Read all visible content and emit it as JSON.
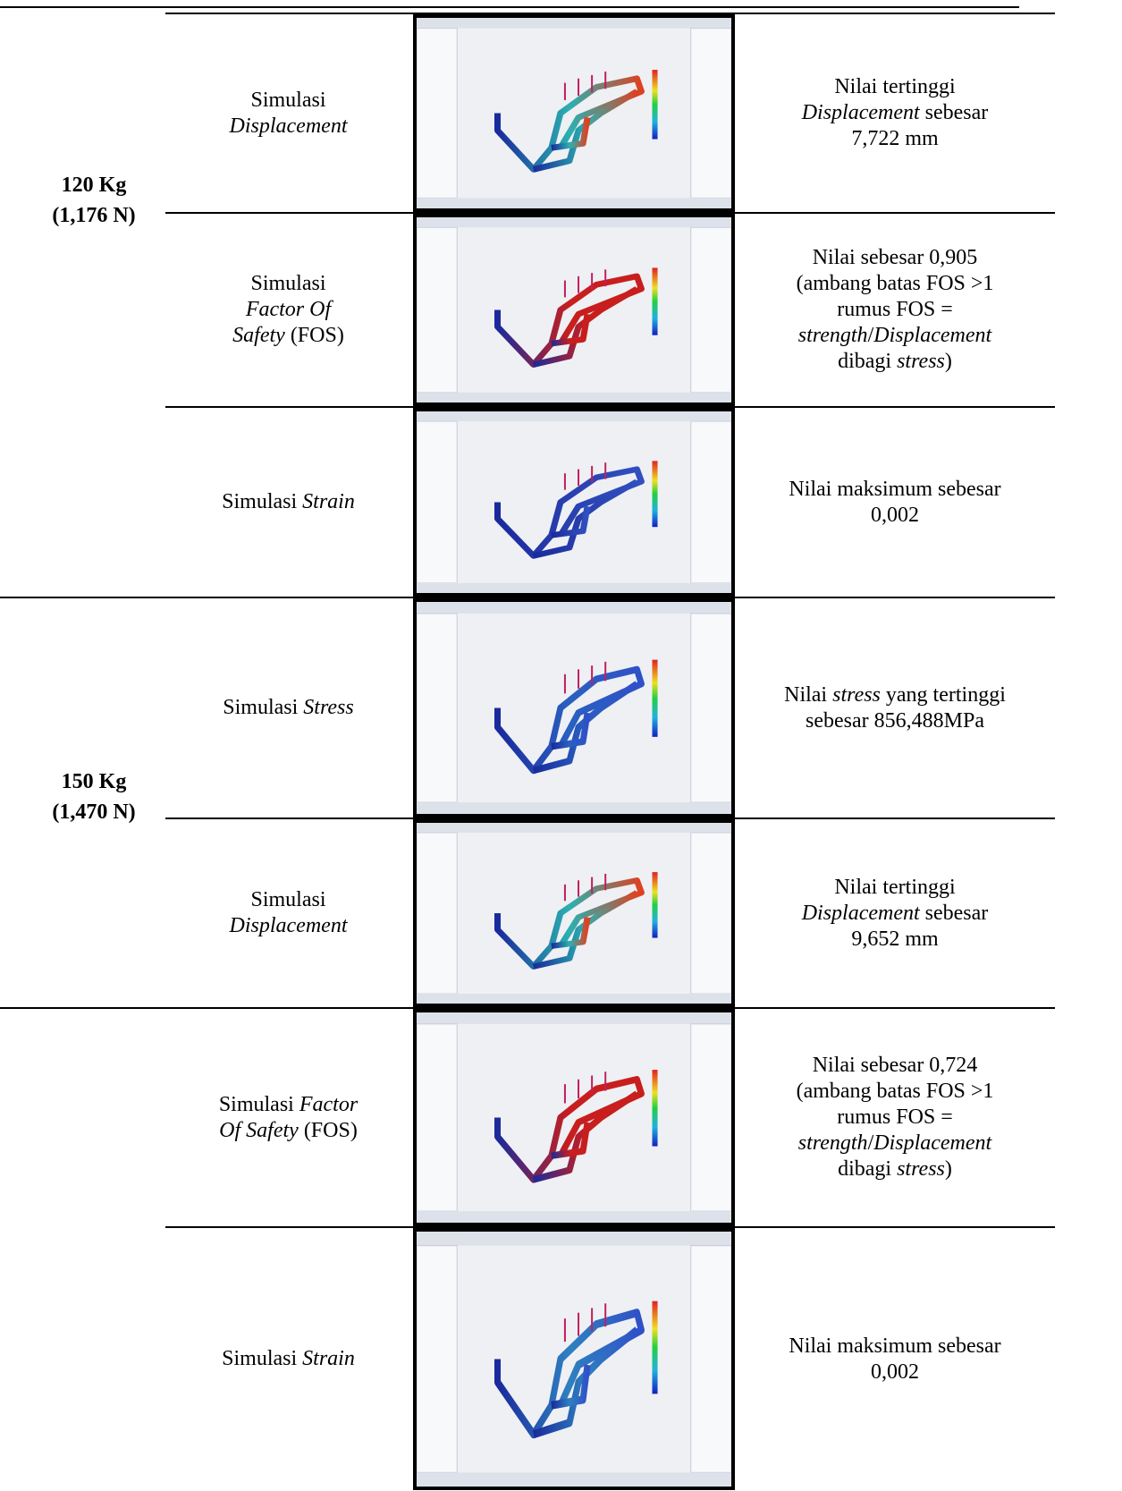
{
  "groups": [
    {
      "label": [
        "120 Kg",
        "(1,176 N)"
      ]
    },
    {
      "label": [
        "150 Kg",
        "(1,470 N)"
      ]
    }
  ],
  "rows": [
    {
      "label": [
        [
          "Simulasi"
        ],
        [
          {
            "em": "Displacement"
          }
        ]
      ],
      "result": [
        [
          "Nilai tertinggi"
        ],
        [
          {
            "em": "Displacement"
          },
          " sebesar"
        ],
        [
          "7,722 mm"
        ]
      ]
    },
    {
      "label": [
        [
          "Simulasi"
        ],
        [
          {
            "em": "Factor Of"
          }
        ],
        [
          {
            "em": "Safety"
          },
          " (FOS)"
        ]
      ],
      "result": [
        [
          "Nilai sebesar 0,905"
        ],
        [
          "(ambang batas FOS >1"
        ],
        [
          "rumus FOS ="
        ],
        [
          {
            "em": "strength"
          },
          "/",
          {
            "em": "Displacement"
          }
        ],
        [
          "dibagi ",
          {
            "em": "stress"
          },
          ")"
        ]
      ]
    },
    {
      "label": [
        [
          "Simulasi ",
          {
            "em": "Strain"
          }
        ]
      ],
      "result": [
        [
          "Nilai maksimum sebesar"
        ],
        [
          "0,002"
        ]
      ]
    },
    {
      "label": [
        [
          "Simulasi ",
          {
            "em": "Stress"
          }
        ]
      ],
      "result": [
        [
          "Nilai ",
          {
            "em": "stress"
          },
          " yang tertinggi"
        ],
        [
          "sebesar 856,488MPa"
        ]
      ]
    },
    {
      "label": [
        [
          "Simulasi"
        ],
        [
          {
            "em": "Displacement"
          }
        ]
      ],
      "result": [
        [
          "Nilai tertinggi"
        ],
        [
          {
            "em": "Displacement"
          },
          " sebesar"
        ],
        [
          "9,652 mm"
        ]
      ]
    },
    {
      "label": [
        [
          "Simulasi ",
          {
            "em": "Factor"
          }
        ],
        [
          {
            "em": "Of Safety"
          },
          " (FOS)"
        ]
      ],
      "result": [
        [
          "Nilai sebesar 0,724"
        ],
        [
          "(ambang batas FOS >1"
        ],
        [
          "rumus FOS ="
        ],
        [
          {
            "em": "strength"
          },
          "/",
          {
            "em": "Displacement"
          }
        ],
        [
          "dibagi ",
          {
            "em": "stress"
          },
          ")"
        ]
      ]
    },
    {
      "label": [
        [
          "Simulasi ",
          {
            "em": "Strain"
          }
        ]
      ],
      "result": [
        [
          "Nilai maksimum sebesar"
        ],
        [
          "0,002"
        ]
      ]
    }
  ]
}
